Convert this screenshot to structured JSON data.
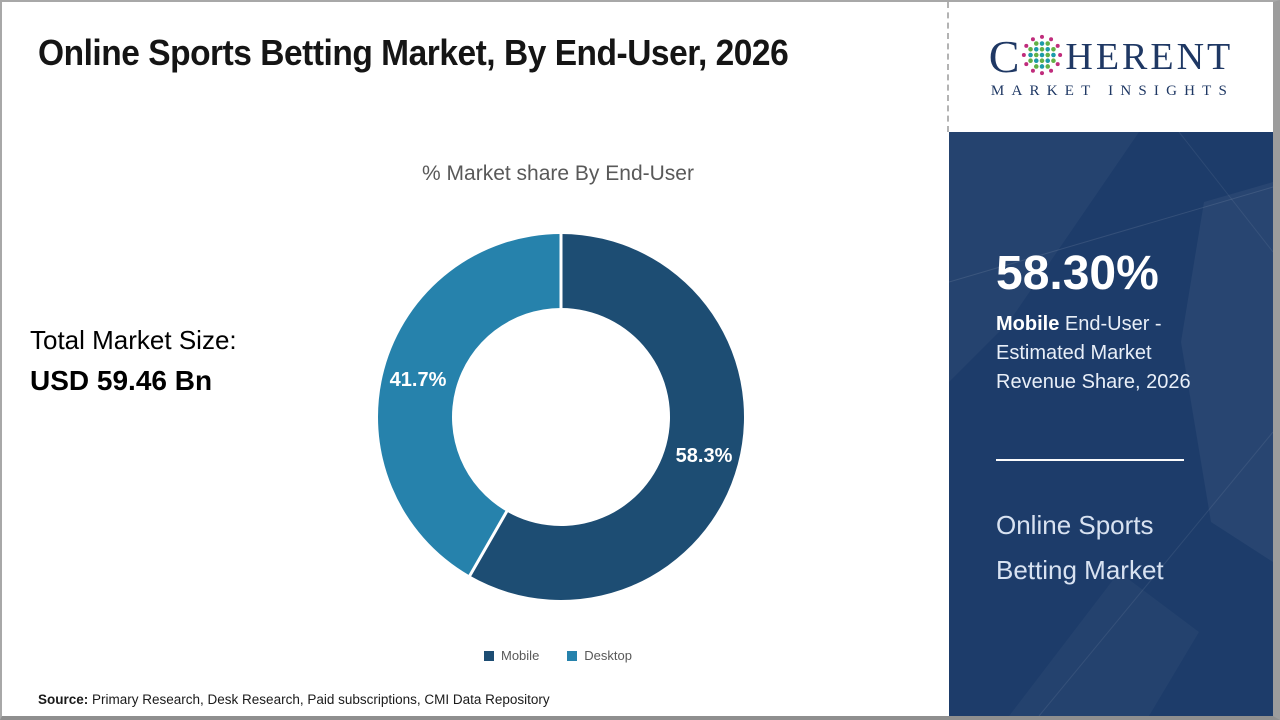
{
  "title": "Online Sports Betting Market, By End-User, 2026",
  "logo": {
    "c": "C",
    "rest": "HERENT",
    "line2": "MARKET INSIGHTS",
    "navy": "#1f3864"
  },
  "left_panel": {
    "total_label": "Total Market Size:",
    "total_value": "USD 59.46 Bn"
  },
  "chart_data": {
    "type": "pie",
    "donut": true,
    "title": "% Market share By End-User",
    "categories": [
      "Mobile",
      "Desktop"
    ],
    "values": [
      58.3,
      41.7
    ],
    "labels": [
      "58.3%",
      "41.7%"
    ],
    "colors": [
      "#1d4d73",
      "#2682ac"
    ],
    "start_angle_deg": 0,
    "direction": "clockwise",
    "inner_radius_ratio": 0.596,
    "legend_position": "bottom"
  },
  "sidebar": {
    "headline": "58.30%",
    "desc_bold": "Mobile",
    "desc_rest": " End-User -",
    "desc_line2": "Estimated Market",
    "desc_line3": "Revenue Share, 2026",
    "market_line1": "Online Sports",
    "market_line2": "Betting Market",
    "background": "#1d3c6a"
  },
  "footer": {
    "source_label": "Source:",
    "source_text": " Primary Research, Desk Research, Paid subscriptions, CMI Data Repository"
  },
  "icon_colors": {
    "globe_teal": "#1b9aaa",
    "globe_green": "#62b146",
    "globe_magenta": "#c02c7c"
  }
}
